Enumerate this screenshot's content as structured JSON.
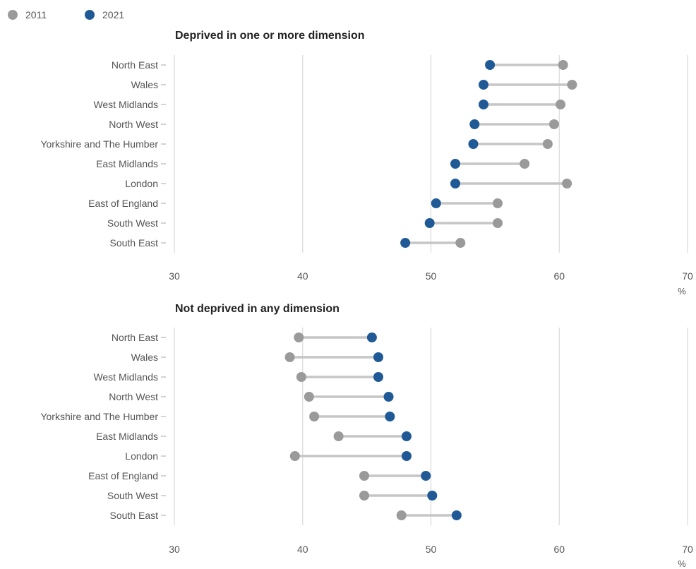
{
  "legend": [
    {
      "label": "2011",
      "color": "#9a9a9a"
    },
    {
      "label": "2021",
      "color": "#1f5a96"
    }
  ],
  "colors": {
    "y2011": "#9a9a9a",
    "y2021": "#1f5a96",
    "connector": "#c6c6c6",
    "grid": "#d9d9d9"
  },
  "chart_data": [
    {
      "type": "dumbbell",
      "title": "Deprived in one or more dimension",
      "xlabel": "%",
      "xlim": [
        30,
        70
      ],
      "xticks": [
        30,
        40,
        50,
        60,
        70
      ],
      "grid": true,
      "legend_position": "top-left",
      "categories": [
        "North East",
        "Wales",
        "West Midlands",
        "North West",
        "Yorkshire and The Humber",
        "East Midlands",
        "London",
        "East of England",
        "South West",
        "South East"
      ],
      "series": [
        {
          "name": "2011",
          "values": [
            60.3,
            61.0,
            60.1,
            59.6,
            59.1,
            57.3,
            60.6,
            55.2,
            55.2,
            52.3
          ]
        },
        {
          "name": "2021",
          "values": [
            54.6,
            54.1,
            54.1,
            53.4,
            53.3,
            51.9,
            51.9,
            50.4,
            49.9,
            48.0
          ]
        }
      ]
    },
    {
      "type": "dumbbell",
      "title": "Not deprived in any dimension",
      "xlabel": "%",
      "xlim": [
        30,
        70
      ],
      "xticks": [
        30,
        40,
        50,
        60,
        70
      ],
      "grid": true,
      "categories": [
        "North East",
        "Wales",
        "West Midlands",
        "North West",
        "Yorkshire and The Humber",
        "East Midlands",
        "London",
        "East of England",
        "South West",
        "South East"
      ],
      "series": [
        {
          "name": "2011",
          "values": [
            39.7,
            39.0,
            39.9,
            40.5,
            40.9,
            42.8,
            39.4,
            44.8,
            44.8,
            47.7
          ]
        },
        {
          "name": "2021",
          "values": [
            45.4,
            45.9,
            45.9,
            46.7,
            46.8,
            48.1,
            48.1,
            49.6,
            50.1,
            52.0
          ]
        }
      ]
    }
  ]
}
